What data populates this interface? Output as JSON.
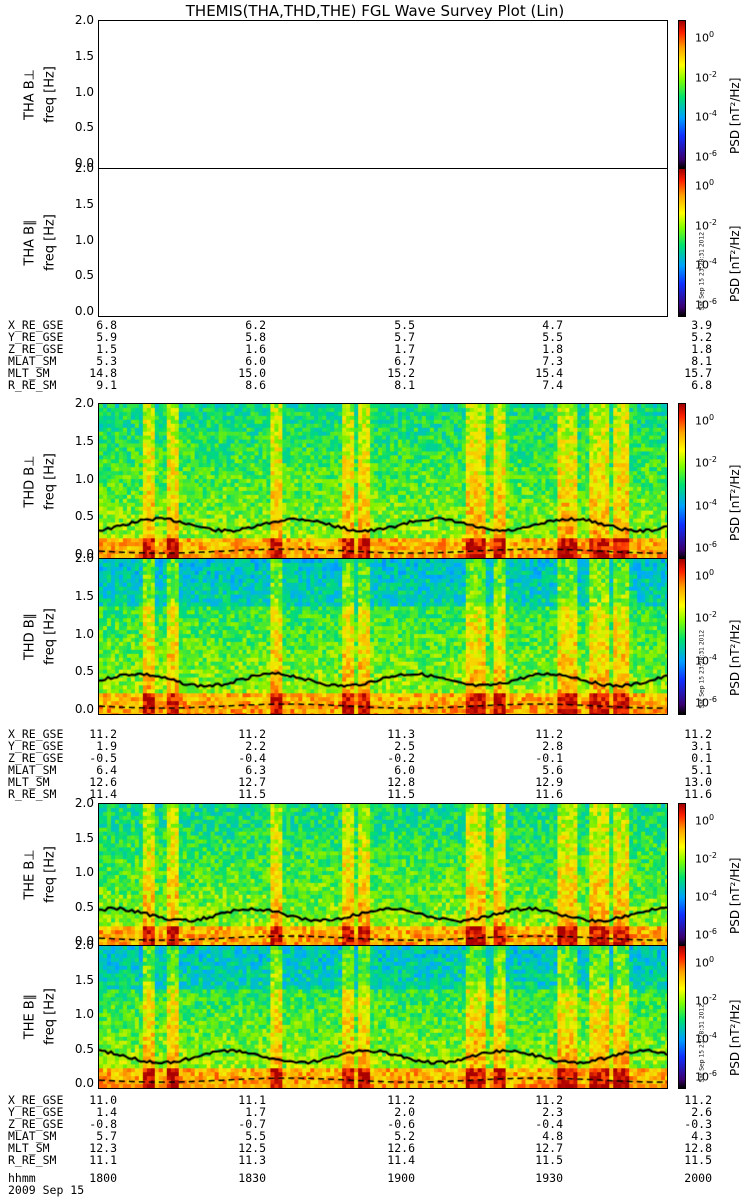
{
  "title": "THEMIS(THA,THD,THE) FGL Wave Survey Plot (Lin)",
  "panels": [
    {
      "label": "THA B⊥",
      "ylabel2": "freq [Hz]",
      "filled": false
    },
    {
      "label": "THA B∥",
      "ylabel2": "freq [Hz]",
      "filled": false
    },
    {
      "label": "THD B⊥",
      "ylabel2": "freq [Hz]",
      "filled": true
    },
    {
      "label": "THD B∥",
      "ylabel2": "freq [Hz]",
      "filled": true
    },
    {
      "label": "THE B⊥",
      "ylabel2": "freq [Hz]",
      "filled": true
    },
    {
      "label": "THE B∥",
      "ylabel2": "freq [Hz]",
      "filled": true
    }
  ],
  "yticks": [
    "2.0",
    "1.5",
    "1.0",
    "0.5",
    "0.0"
  ],
  "colorbar": {
    "ticks": [
      "10",
      "10",
      "10",
      "10"
    ],
    "exps": [
      "0",
      "-2",
      "-4",
      "-6"
    ],
    "label": "PSD [nT²/Hz]"
  },
  "timestamp": "Sat Sep 15 23:28:31 2012",
  "ephem_labels": [
    "X_RE_GSE",
    "Y_RE_GSE",
    "Z_RE_GSE",
    "MLAT_SM",
    "MLT_SM",
    "R_RE_SM"
  ],
  "ephem": [
    [
      [
        "6.8",
        "6.2",
        "5.5",
        "4.7",
        "3.9"
      ],
      [
        "5.9",
        "5.8",
        "5.7",
        "5.5",
        "5.2"
      ],
      [
        "1.5",
        "1.6",
        "1.7",
        "1.8",
        "1.8"
      ],
      [
        "5.3",
        "6.0",
        "6.7",
        "7.3",
        "8.1"
      ],
      [
        "14.8",
        "15.0",
        "15.2",
        "15.4",
        "15.7"
      ],
      [
        "9.1",
        "8.6",
        "8.1",
        "7.4",
        "6.8"
      ]
    ],
    [
      [
        "11.2",
        "11.2",
        "11.3",
        "11.2",
        "11.2"
      ],
      [
        "1.9",
        "2.2",
        "2.5",
        "2.8",
        "3.1"
      ],
      [
        "-0.5",
        "-0.4",
        "-0.2",
        "-0.1",
        "0.1"
      ],
      [
        "6.4",
        "6.3",
        "6.0",
        "5.6",
        "5.1"
      ],
      [
        "12.6",
        "12.7",
        "12.8",
        "12.9",
        "13.0"
      ],
      [
        "11.4",
        "11.5",
        "11.5",
        "11.6",
        "11.6"
      ]
    ],
    [
      [
        "11.0",
        "11.1",
        "11.2",
        "11.2",
        "11.2"
      ],
      [
        "1.4",
        "1.7",
        "2.0",
        "2.3",
        "2.6"
      ],
      [
        "-0.8",
        "-0.7",
        "-0.6",
        "-0.4",
        "-0.3"
      ],
      [
        "5.7",
        "5.5",
        "5.2",
        "4.8",
        "4.3"
      ],
      [
        "12.3",
        "12.5",
        "12.6",
        "12.7",
        "12.8"
      ],
      [
        "11.1",
        "11.3",
        "11.4",
        "11.5",
        "11.5"
      ]
    ]
  ],
  "time_label": "hhmm",
  "time_ticks": [
    "1800",
    "1830",
    "1900",
    "1930",
    "2000"
  ],
  "date": "2009 Sep 15",
  "chart_data": {
    "type": "heatmap",
    "title": "THEMIS(THA,THD,THE) FGL Wave Survey Plot (Lin)",
    "xlabel": "hhmm",
    "x_ticks": [
      "1800",
      "1830",
      "1900",
      "1930",
      "2000"
    ],
    "ylabel": "freq [Hz]",
    "ylim": [
      0,
      2.0
    ],
    "colorbar_label": "PSD [nT²/Hz]",
    "colorbar_range_log10": [
      -6,
      1
    ],
    "series": [
      {
        "name": "THA B⊥",
        "values": []
      },
      {
        "name": "THA B∥",
        "values": []
      },
      {
        "name": "THD B⊥",
        "values": []
      },
      {
        "name": "THD B∥",
        "values": []
      },
      {
        "name": "THE B⊥",
        "values": []
      },
      {
        "name": "THE B∥",
        "values": []
      }
    ]
  }
}
